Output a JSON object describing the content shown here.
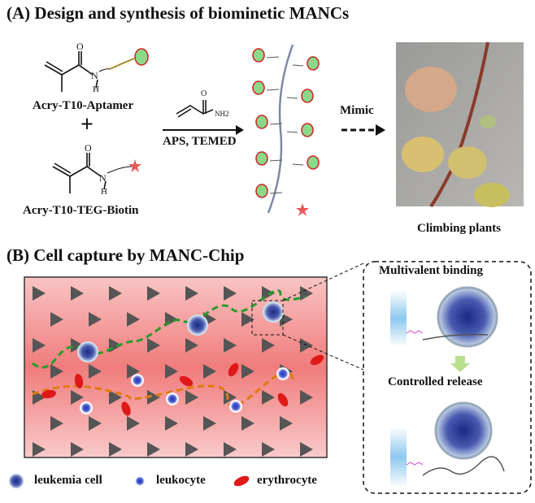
{
  "section_a": {
    "title": "(A) Design and synthesis of biominetic MANCs",
    "monomer1_label": "Acry-T10-Aptamer",
    "plus": "+",
    "monomer2_label": "Acry-T10-TEG-Biotin",
    "reagent_top": "NH2",
    "reagent_conditions": "APS, TEMED",
    "atom_o": "O",
    "atom_n": "N",
    "atom_h": "H",
    "mimic_label": "Mimic",
    "photo_caption": "Climbing plants"
  },
  "section_b": {
    "title": "(B) Cell capture by MANC-Chip",
    "inset_top_label": "Multivalent binding",
    "inset_bottom_label": "Controlled release",
    "legend": [
      {
        "label": "leukemia cell",
        "icon": "leukemia-cell-icon"
      },
      {
        "label": "leukocyte",
        "icon": "leukocyte-icon"
      },
      {
        "label": "erythrocyte",
        "icon": "erythrocyte-icon"
      }
    ]
  },
  "colors": {
    "chip_bg": "#f28a8a",
    "triangle": "#555555",
    "leukemia_path": "#2a9a2a",
    "blood_path": "#e07a10",
    "erythrocyte": "#e01818",
    "cell_blue": "#2a3a9a"
  }
}
